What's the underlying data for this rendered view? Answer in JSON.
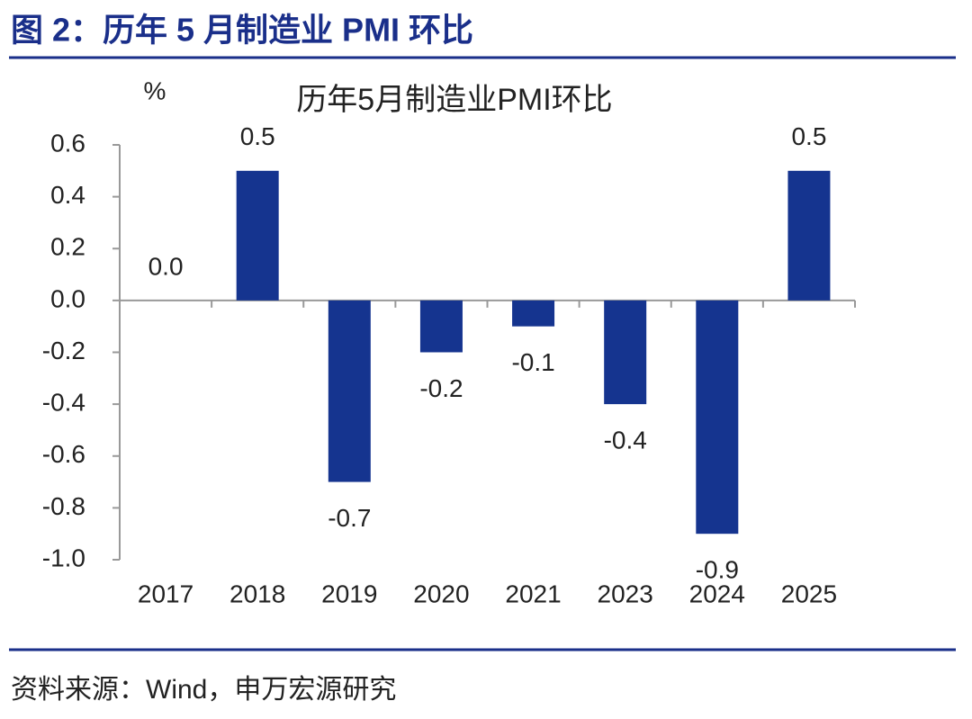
{
  "header": {
    "title": "图 2：历年 5 月制造业 PMI 环比"
  },
  "chart_data": {
    "type": "bar",
    "title": "历年5月制造业PMI环比",
    "y_unit": "%",
    "categories": [
      "2017",
      "2018",
      "2019",
      "2020",
      "2021",
      "2023",
      "2024",
      "2025"
    ],
    "values": [
      0.0,
      0.5,
      -0.7,
      -0.2,
      -0.1,
      -0.4,
      -0.9,
      0.5
    ],
    "value_labels": [
      "0.0",
      "0.5",
      "-0.7",
      "-0.2",
      "-0.1",
      "-0.4",
      "-0.9",
      "0.5"
    ],
    "color": "#15348f",
    "ylim": [
      -1.0,
      0.6
    ],
    "yticks": [
      {
        "value": -1.0,
        "label": "-1.0"
      },
      -0.8,
      -0.6,
      -0.4,
      -0.2,
      {
        "value": 0,
        "label": "0.0"
      },
      0.2,
      0.4,
      0.6
    ],
    "grid": false
  },
  "footer": {
    "source": "资料来源：Wind，申万宏源研究"
  }
}
